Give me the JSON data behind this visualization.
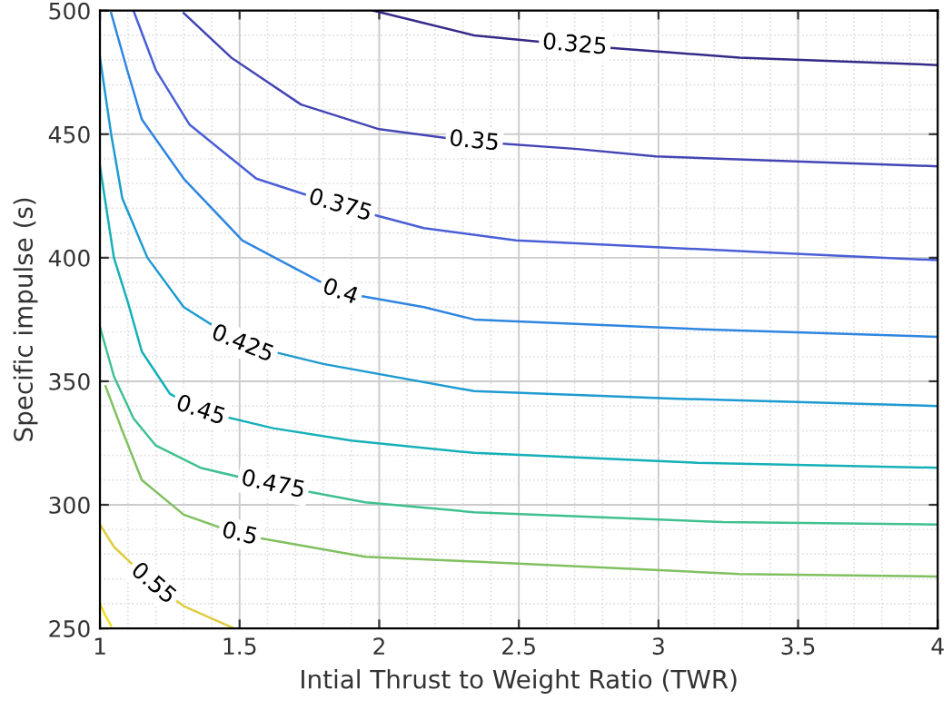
{
  "chart_data": {
    "type": "line",
    "xlabel": "Intial Thrust to Weight Ratio (TWR)",
    "ylabel": "Specific impulse (s)",
    "xlim": [
      1,
      4
    ],
    "ylim": [
      250,
      500
    ],
    "xticks": [
      1,
      1.5,
      2,
      2.5,
      3,
      3.5,
      4
    ],
    "yticks": [
      250,
      300,
      350,
      400,
      450,
      500
    ],
    "grid": true,
    "legend": false,
    "marker": "none",
    "line_style": "solid",
    "series": [
      {
        "name": "0.325",
        "color": "#352a87",
        "x": [
          1.98,
          2.34,
          2.7,
          3.29,
          4
        ],
        "values": [
          500,
          490,
          486,
          481,
          478
        ]
      },
      {
        "name": "0.35",
        "color": "#4445b5",
        "x": [
          1.3,
          1.47,
          1.72,
          2.0,
          2.34,
          2.71,
          2.99,
          4
        ],
        "values": [
          499,
          481,
          462,
          452,
          447,
          444,
          441,
          437
        ]
      },
      {
        "name": "0.375",
        "color": "#4a5fd6",
        "x": [
          1.12,
          1.2,
          1.32,
          1.56,
          1.86,
          2.16,
          2.49,
          3.42,
          4
        ],
        "values": [
          500,
          476,
          454,
          432,
          421,
          412,
          407,
          402,
          399
        ]
      },
      {
        "name": "0.4",
        "color": "#2f86e0",
        "x": [
          1.04,
          1.1,
          1.15,
          1.3,
          1.51,
          1.86,
          2.16,
          2.34,
          3.16,
          4
        ],
        "values": [
          499,
          475,
          456,
          432,
          407,
          386,
          380,
          375,
          371,
          368
        ]
      },
      {
        "name": "0.425",
        "color": "#1e9bd0",
        "x": [
          1.0,
          1.04,
          1.08,
          1.17,
          1.3,
          1.51,
          1.8,
          2.34,
          3.05,
          4
        ],
        "values": [
          481,
          450,
          424,
          400,
          380,
          365,
          357,
          346,
          343,
          340
        ]
      },
      {
        "name": "0.45",
        "color": "#15b0b8",
        "x": [
          1.0,
          1.05,
          1.1,
          1.15,
          1.25,
          1.36,
          1.62,
          1.9,
          2.34,
          3.14,
          4
        ],
        "values": [
          437,
          400,
          382,
          362,
          345,
          338,
          331,
          326,
          321,
          317,
          315
        ]
      },
      {
        "name": "0.475",
        "color": "#40c090",
        "x": [
          1.0,
          1.05,
          1.12,
          1.2,
          1.36,
          1.62,
          1.95,
          2.34,
          3.23,
          4
        ],
        "values": [
          372,
          352,
          335,
          324,
          315,
          308,
          301,
          297,
          293,
          292
        ]
      },
      {
        "name": "0.5",
        "color": "#80c060",
        "x": [
          1.02,
          1.08,
          1.15,
          1.3,
          1.5,
          1.95,
          2.34,
          3.29,
          4
        ],
        "values": [
          348,
          330,
          310,
          296,
          288,
          279,
          277,
          272,
          271
        ]
      },
      {
        "name": "0.55",
        "color": "#e0cc40",
        "x": [
          1.0,
          1.05,
          1.19,
          1.3,
          1.48
        ],
        "values": [
          292,
          283,
          268,
          259,
          250
        ]
      },
      {
        "color": "#f2e020",
        "x": [
          1.0,
          1.02,
          1.04
        ],
        "values": [
          260,
          255,
          251
        ]
      }
    ]
  }
}
